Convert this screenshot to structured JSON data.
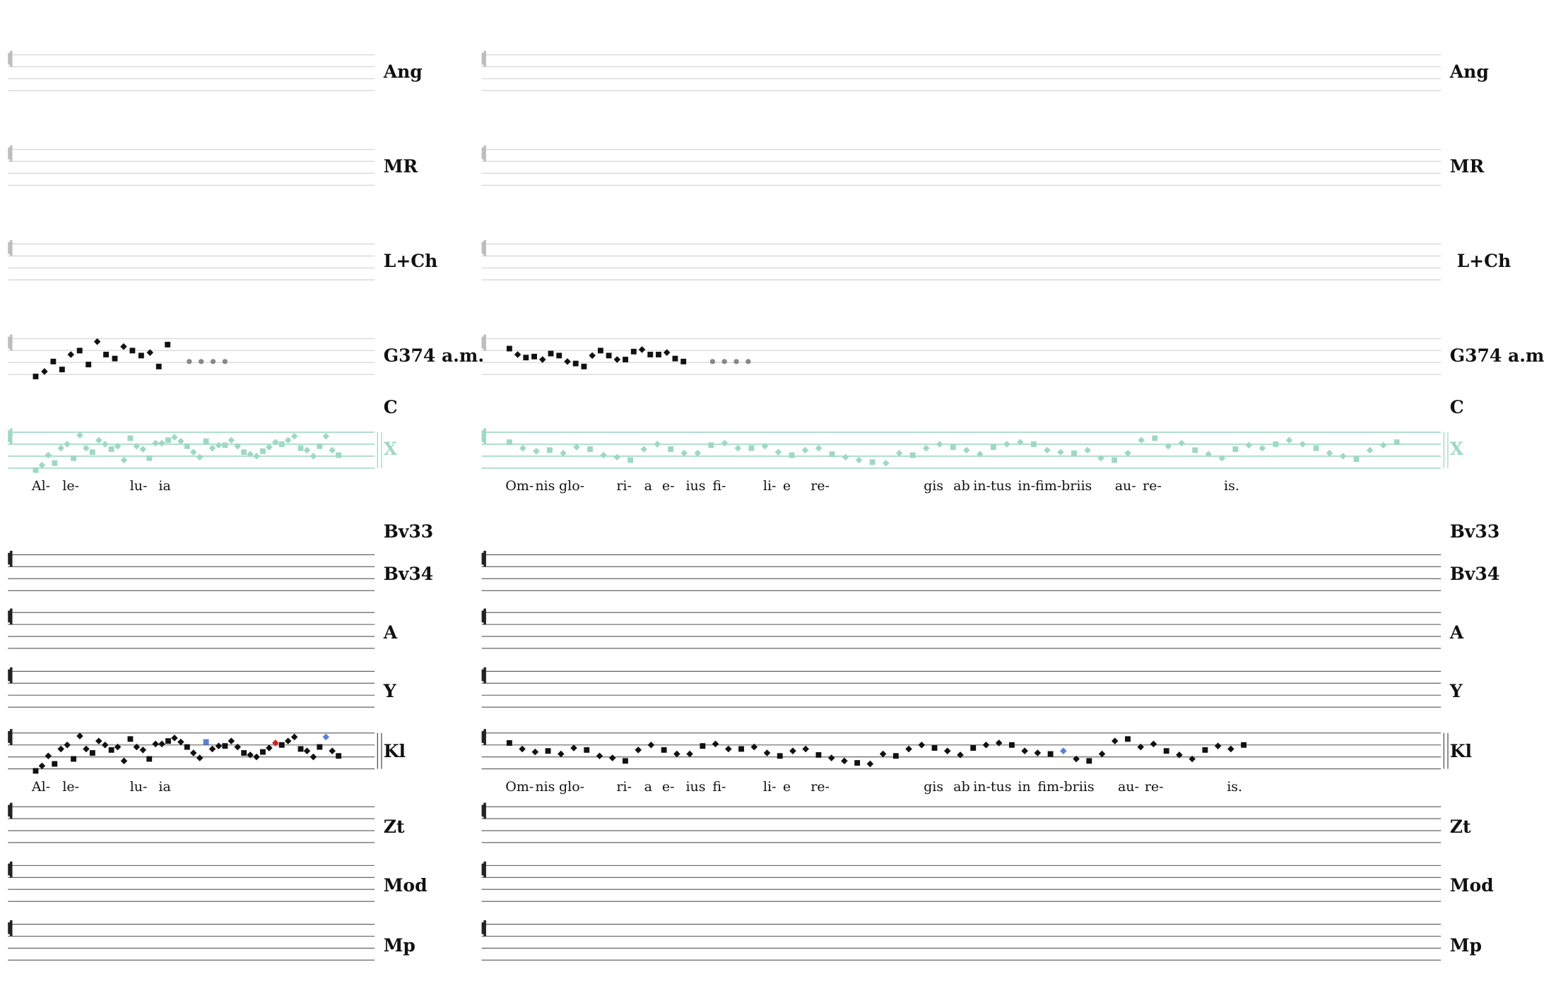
{
  "colors": {
    "faint_staff": "#d9d9d9",
    "dark_staff": "#555555",
    "teal": "#9ed8c3",
    "neume": "#111111",
    "ellipsis": "#888888",
    "accent_red": "#d62020",
    "accent_blue": "#5b7fd6"
  },
  "rows": [
    {
      "key": "ang",
      "left_label": "Ang",
      "right_label": "Ang",
      "style": "faint"
    },
    {
      "key": "mr",
      "left_label": "MR",
      "right_label": "MR",
      "style": "faint"
    },
    {
      "key": "lch",
      "left_label": "L+Ch",
      "right_label": "L+Ch",
      "style": "faint"
    },
    {
      "key": "g374",
      "left_label": "G374  a.m.",
      "right_label": "G374  a.m.",
      "style": "faint-neumes"
    },
    {
      "key": "c_label",
      "left_label": "C",
      "right_label": "C",
      "style": "label-only"
    },
    {
      "key": "x",
      "left_label": "X",
      "right_label": "X",
      "style": "teal"
    },
    {
      "key": "bv33",
      "left_label": "Bv33",
      "right_label": "Bv33",
      "style": "label-only"
    },
    {
      "key": "bv34",
      "left_label": "Bv34",
      "right_label": "Bv34",
      "style": "dark"
    },
    {
      "key": "a",
      "left_label": "A",
      "right_label": "A",
      "style": "dark"
    },
    {
      "key": "y",
      "left_label": "Y",
      "right_label": "Y",
      "style": "dark"
    },
    {
      "key": "kl",
      "left_label": "Kl",
      "right_label": "Kl",
      "style": "dark-neumes"
    },
    {
      "key": "zt",
      "left_label": "Zt",
      "right_label": "Zt",
      "style": "dark"
    },
    {
      "key": "mod",
      "left_label": "Mod",
      "right_label": "Mod",
      "style": "dark"
    },
    {
      "key": "mp",
      "left_label": "Mp",
      "right_label": "Mp",
      "style": "dark"
    }
  ],
  "lyrics_x": {
    "left": [
      "Al-",
      "le-",
      "lu-",
      "ia"
    ],
    "right": [
      "Om-",
      "nis",
      "glo-",
      "ri-",
      "a",
      "e-",
      "ius",
      "fi-",
      "li-",
      "e",
      "re-",
      "gis",
      "ab",
      "in-tus",
      "in-fim-briis",
      "au-",
      "re-",
      "is."
    ]
  },
  "lyrics_kl": {
    "left": [
      "Al-",
      "le-",
      "lu-",
      "ia"
    ],
    "right": [
      "Om-",
      "nis",
      "glo-",
      "ri-",
      "a",
      "e-",
      "ius",
      "fi-",
      "li-",
      "e",
      "re-",
      "gis",
      "ab",
      "in-tus",
      "in",
      "fim-briis",
      "au-",
      "re-",
      "is."
    ]
  }
}
